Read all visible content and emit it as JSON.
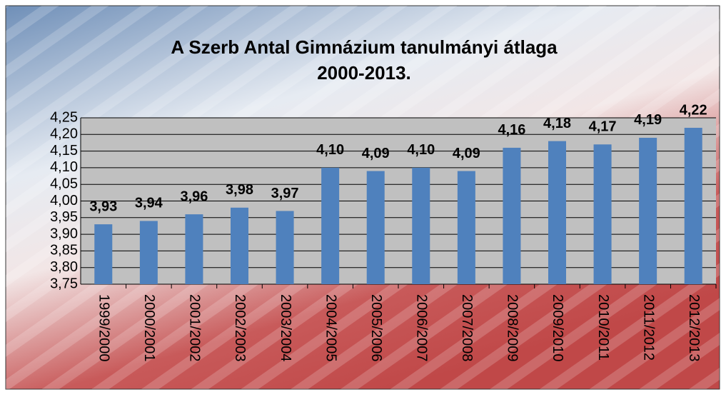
{
  "chart_data": {
    "type": "bar",
    "title": [
      "A Szerb Antal Gimnázium tanulmányi átlaga",
      "2000-2013."
    ],
    "categories": [
      "1999/2000",
      "2000/2001",
      "2001/2002",
      "2002/2003",
      "2003/2004",
      "2004/2005",
      "2005/2006",
      "2006/2007",
      "2007/2008",
      "2008/2009",
      "2009/2010",
      "2010/2011",
      "2011/2012",
      "2012/2013"
    ],
    "values": [
      3.93,
      3.94,
      3.96,
      3.98,
      3.97,
      4.1,
      4.09,
      4.1,
      4.09,
      4.16,
      4.18,
      4.17,
      4.19,
      4.22
    ],
    "value_labels": [
      "3,93",
      "3,94",
      "3,96",
      "3,98",
      "3,97",
      "4,10",
      "4,09",
      "4,10",
      "4,09",
      "4,16",
      "4,18",
      "4,17",
      "4,19",
      "4,22"
    ],
    "color": "#4f81bd",
    "ylim": [
      3.75,
      4.25
    ],
    "yticks": [
      {
        "value": 3.75,
        "label": "3,75"
      },
      {
        "value": 3.8,
        "label": "3,80"
      },
      {
        "value": 3.85,
        "label": "3,85"
      },
      {
        "value": 3.9,
        "label": "3,90"
      },
      {
        "value": 3.95,
        "label": "3,95"
      },
      {
        "value": 4.0,
        "label": "4,00"
      },
      {
        "value": 4.05,
        "label": "4,05"
      },
      {
        "value": 4.1,
        "label": "4,10"
      },
      {
        "value": 4.15,
        "label": "4,15"
      },
      {
        "value": 4.2,
        "label": "4,20"
      },
      {
        "value": 4.25,
        "label": "4,25"
      }
    ],
    "grid": true
  }
}
